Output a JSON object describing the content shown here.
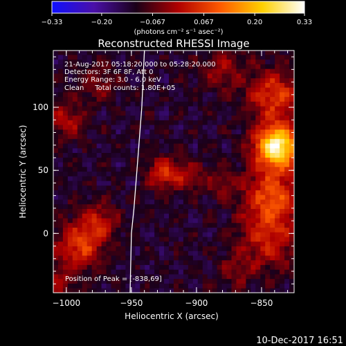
{
  "chart_data": {
    "type": "heatmap",
    "title": "Reconstructed RHESSI Image",
    "xlabel": "Heliocentric X (arcsec)",
    "ylabel": "Heliocentric Y (arcsec)",
    "xlim": [
      -1010,
      -825
    ],
    "ylim": [
      -47,
      145
    ],
    "x_ticks": [
      -1000,
      -950,
      -900,
      -850
    ],
    "x_tick_labels": [
      "−1000",
      "−950",
      "−900",
      "−850"
    ],
    "y_ticks": [
      0,
      50,
      100
    ],
    "y_tick_labels": [
      "0",
      "50",
      "100"
    ],
    "colorbar": {
      "range": [
        -0.33,
        0.33
      ],
      "ticks": [
        -0.33,
        -0.2,
        -0.067,
        0.067,
        0.2,
        0.33
      ],
      "tick_labels": [
        "−0.33",
        "−0.20",
        "−0.067",
        "0.067",
        "0.20",
        "0.33"
      ],
      "units": "(photons cm⁻² s⁻¹ asec⁻²)",
      "colormap": [
        "#1010ff",
        "#4a10a8",
        "#1a0018",
        "#b00000",
        "#ff5a00",
        "#ffd000",
        "#ffffff"
      ]
    },
    "annotations": [
      "21-Aug-2017 05:18:20.000 to 05:28:20.000",
      "Detectors: 3F 6F 8F, Att 0",
      "Energy Range: 3.0 - 6.0 keV",
      "Clean     Total counts: 1.80E+05"
    ],
    "peak_label": "Position of Peak = [-838,69]",
    "peak": {
      "x": -838,
      "y": 69,
      "value": 0.33
    },
    "limb": [
      [
        -940,
        145
      ],
      [
        -942,
        100
      ],
      [
        -945,
        60
      ],
      [
        -948,
        20
      ],
      [
        -950,
        0
      ],
      [
        -951,
        -47
      ]
    ],
    "sources": [
      {
        "x": -838,
        "y": 69,
        "amp": 0.42,
        "s": 12
      },
      {
        "x": -842,
        "y": 30,
        "amp": 0.2,
        "s": 15
      },
      {
        "x": -840,
        "y": 110,
        "amp": 0.18,
        "s": 14
      },
      {
        "x": -845,
        "y": -5,
        "amp": 0.14,
        "s": 16
      },
      {
        "x": -925,
        "y": 48,
        "amp": 0.17,
        "s": 9
      },
      {
        "x": -905,
        "y": 45,
        "amp": 0.1,
        "s": 8
      },
      {
        "x": -880,
        "y": 40,
        "amp": 0.08,
        "s": 8
      },
      {
        "x": -990,
        "y": -10,
        "amp": 0.18,
        "s": 13
      },
      {
        "x": -975,
        "y": 10,
        "amp": 0.12,
        "s": 10
      },
      {
        "x": -1000,
        "y": 90,
        "amp": 0.12,
        "s": 10
      },
      {
        "x": -975,
        "y": 120,
        "amp": 0.08,
        "s": 10
      },
      {
        "x": -880,
        "y": 130,
        "amp": 0.09,
        "s": 12
      },
      {
        "x": -870,
        "y": -30,
        "amp": 0.07,
        "s": 10
      },
      {
        "x": -1005,
        "y": -40,
        "amp": 0.09,
        "s": 9
      }
    ]
  },
  "footer": {
    "timestamp": "10-Dec-2017 16:51"
  }
}
